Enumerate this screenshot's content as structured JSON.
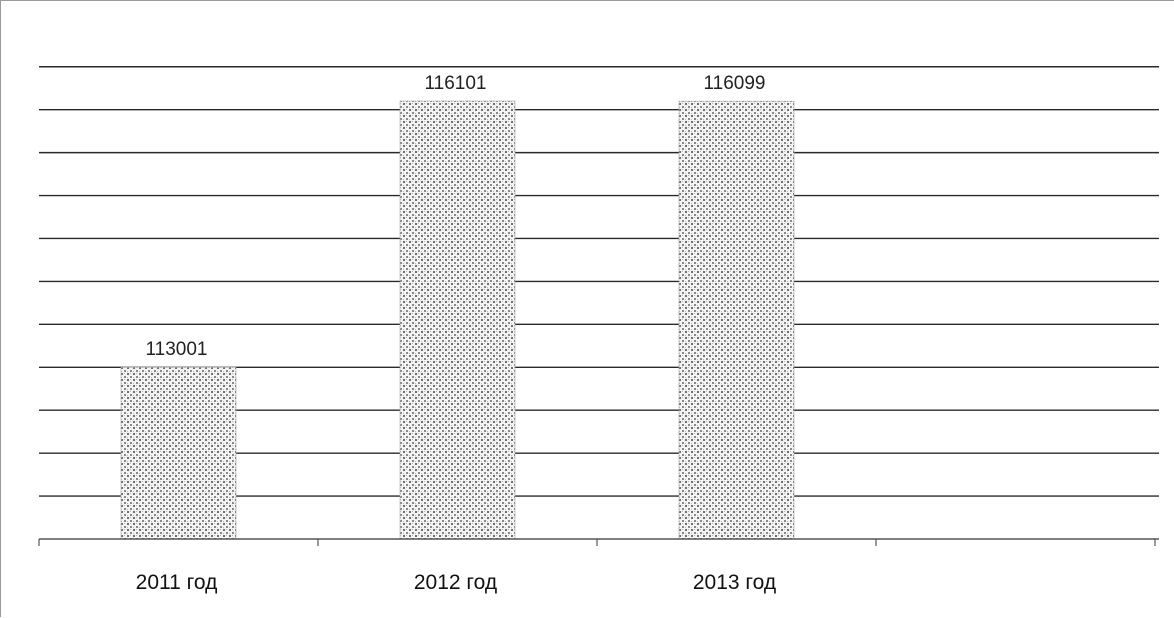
{
  "chart_data": {
    "type": "bar",
    "categories": [
      "2011 год",
      "2012 год",
      "2013 год"
    ],
    "values": [
      113001,
      116101,
      116099
    ],
    "data_labels": [
      "113001",
      "116101",
      "116099"
    ],
    "title": "",
    "xlabel": "",
    "ylabel": "",
    "ylim": [
      111000,
      116800
    ],
    "gridline_step": 500,
    "grid": true,
    "legend": "none",
    "bar_color": "#a9a9a9",
    "gridline_color": "#2a2a2a"
  }
}
